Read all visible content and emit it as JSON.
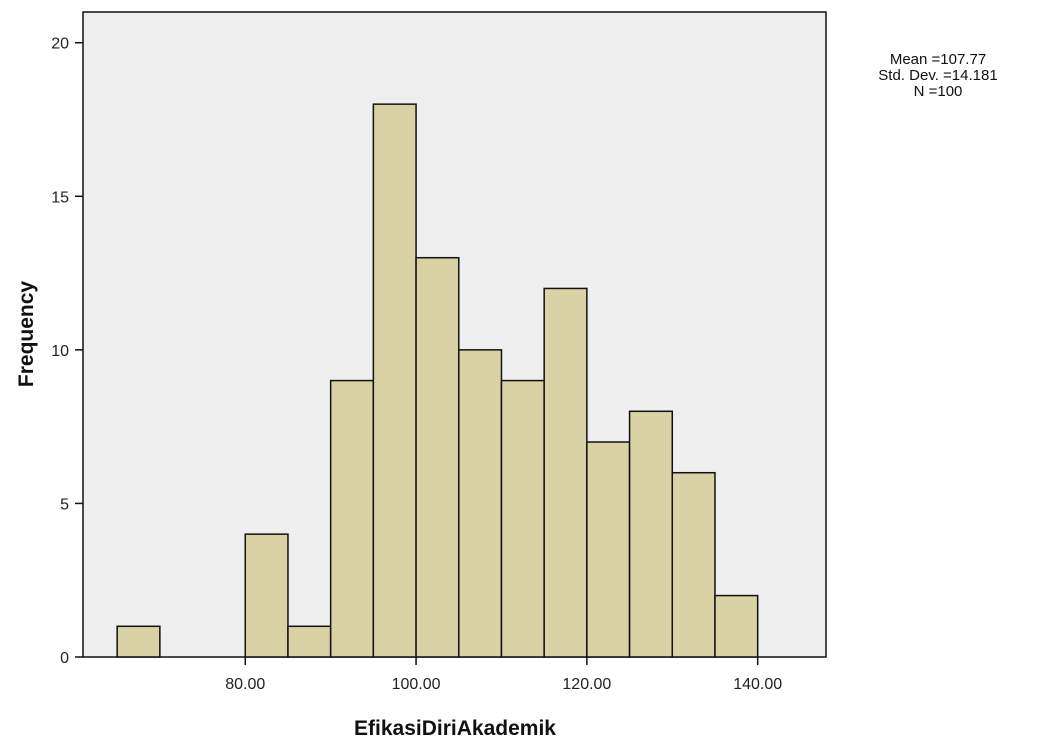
{
  "chart_data": {
    "type": "bar",
    "subtype": "histogram",
    "xlabel": "EfikasiDiriAkademik",
    "ylabel": "Frequency",
    "bin_width": 5,
    "bins": [
      {
        "start": 65,
        "end": 70,
        "count": 1
      },
      {
        "start": 70,
        "end": 75,
        "count": 0
      },
      {
        "start": 75,
        "end": 80,
        "count": 0
      },
      {
        "start": 80,
        "end": 85,
        "count": 4
      },
      {
        "start": 85,
        "end": 90,
        "count": 1
      },
      {
        "start": 90,
        "end": 95,
        "count": 9
      },
      {
        "start": 95,
        "end": 100,
        "count": 18
      },
      {
        "start": 100,
        "end": 105,
        "count": 13
      },
      {
        "start": 105,
        "end": 110,
        "count": 10
      },
      {
        "start": 110,
        "end": 115,
        "count": 9
      },
      {
        "start": 115,
        "end": 120,
        "count": 12
      },
      {
        "start": 120,
        "end": 125,
        "count": 7
      },
      {
        "start": 125,
        "end": 130,
        "count": 8
      },
      {
        "start": 130,
        "end": 135,
        "count": 6
      },
      {
        "start": 135,
        "end": 140,
        "count": 2
      }
    ],
    "xlim": [
      61,
      148
    ],
    "ylim": [
      0,
      21
    ],
    "xticks": [
      "80.00",
      "100.00",
      "120.00",
      "140.00"
    ],
    "xtick_values": [
      80,
      100,
      120,
      140
    ],
    "yticks": [
      "0",
      "5",
      "10",
      "15",
      "20"
    ],
    "ytick_values": [
      0,
      5,
      10,
      15,
      20
    ],
    "grid": false,
    "legend": "none",
    "colors": {
      "bar_fill": "#d8d2a4",
      "bar_stroke": "#111111",
      "plot_bg": "#efefef"
    },
    "stats": {
      "mean": "Mean =107.77",
      "std": "Std. Dev. =14.181",
      "n": "N =100"
    }
  }
}
